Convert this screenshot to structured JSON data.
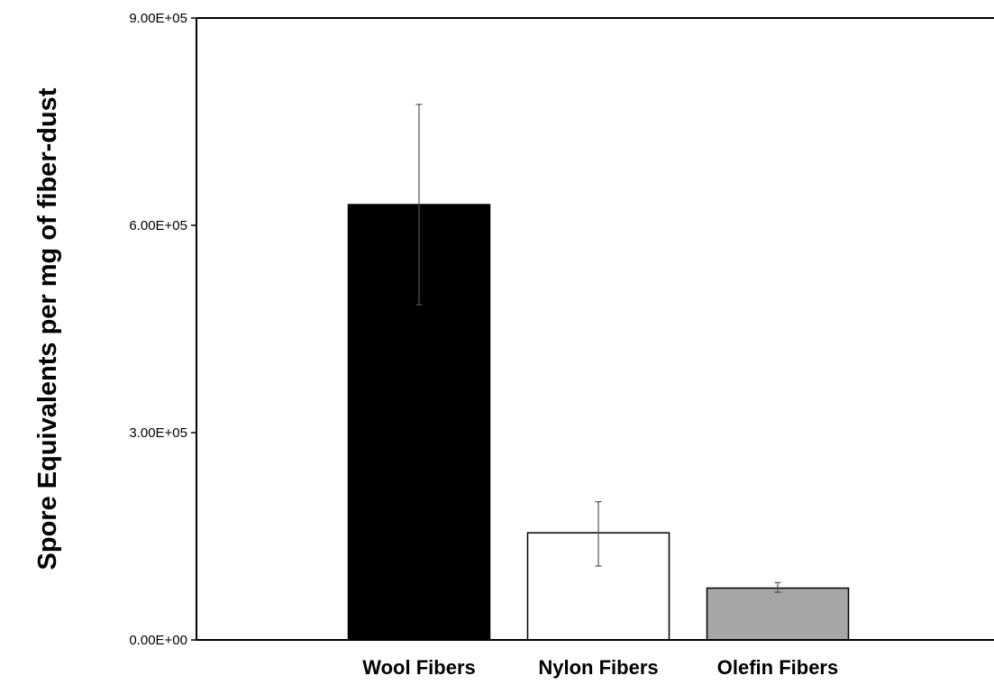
{
  "chart_data": {
    "type": "bar",
    "title": "",
    "xlabel": "",
    "ylabel": "Spore Equivalents per mg of fiber-dust",
    "categories": [
      "Wool Fibers",
      "Nylon Fibers",
      "Olefin Fibers"
    ],
    "values": [
      630000,
      155000,
      75000
    ],
    "error_plus": [
      145000,
      45000,
      8000
    ],
    "error_minus": [
      145000,
      48000,
      6000
    ],
    "bar_colors": [
      "#000000",
      "#ffffff",
      "#a6a6a6"
    ],
    "bar_edge_color": "#000000",
    "ylim": [
      0,
      900000
    ],
    "yticks": [
      0,
      300000,
      600000,
      900000
    ],
    "ytick_labels": [
      "0.00E+00",
      "3.00E+05",
      "6.00E+05",
      "9.00E+05"
    ],
    "grid": false,
    "legend": "none"
  }
}
